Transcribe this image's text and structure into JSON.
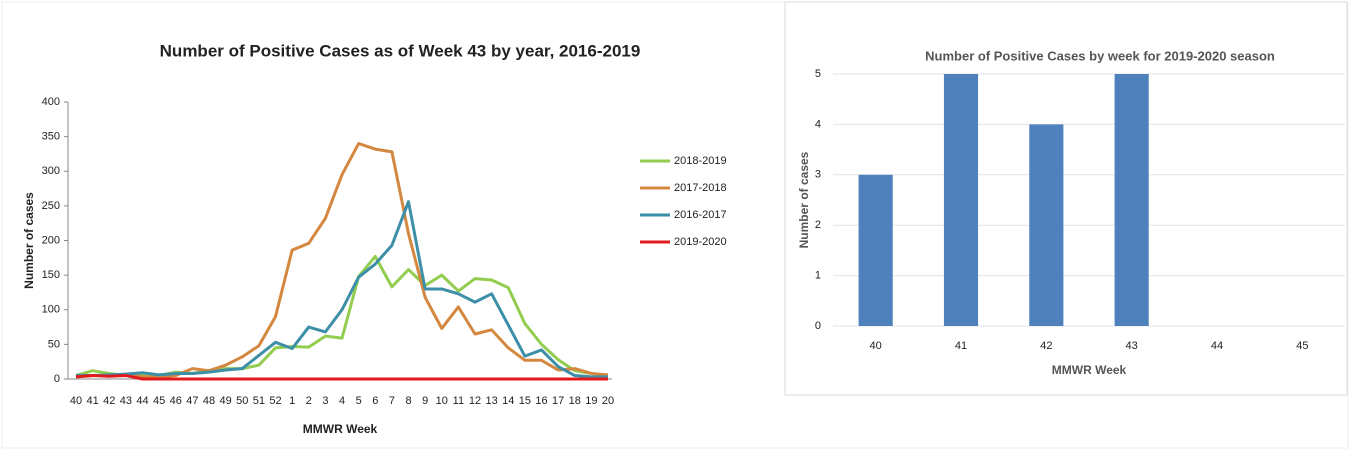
{
  "chart_data": [
    {
      "type": "line",
      "title": "Number of Positive Cases as of Week 43 by year, 2016-2019",
      "x_label": "MMWR Week",
      "y_label": "Number of cases",
      "categories": [
        "40",
        "41",
        "42",
        "43",
        "44",
        "45",
        "46",
        "47",
        "48",
        "49",
        "50",
        "51",
        "52",
        "1",
        "2",
        "3",
        "4",
        "5",
        "6",
        "7",
        "8",
        "9",
        "10",
        "11",
        "12",
        "13",
        "14",
        "15",
        "16",
        "17",
        "18",
        "19",
        "20"
      ],
      "ylim": [
        0,
        400
      ],
      "yticks": [
        0,
        50,
        100,
        150,
        200,
        250,
        300,
        350,
        400
      ],
      "grid": false,
      "legend": "right",
      "series": [
        {
          "name": "2018-2019",
          "color": "#92cd4f",
          "values": [
            5,
            12,
            8,
            5,
            5,
            5,
            10,
            8,
            12,
            15,
            15,
            20,
            45,
            47,
            46,
            62,
            59,
            148,
            177,
            133,
            158,
            135,
            150,
            127,
            145,
            143,
            132,
            80,
            50,
            28,
            12,
            8,
            5
          ]
        },
        {
          "name": "2017-2018",
          "color": "#d4873f",
          "values": [
            3,
            5,
            5,
            7,
            3,
            3,
            5,
            15,
            12,
            20,
            32,
            48,
            90,
            186,
            196,
            232,
            295,
            340,
            332,
            328,
            210,
            118,
            73,
            104,
            65,
            71,
            45,
            27,
            27,
            13,
            15,
            8,
            6
          ]
        },
        {
          "name": "2016-2017",
          "color": "#3d8fa8",
          "values": [
            5,
            5,
            6,
            7,
            9,
            6,
            8,
            8,
            10,
            13,
            15,
            34,
            53,
            44,
            75,
            68,
            100,
            147,
            166,
            193,
            256,
            130,
            130,
            123,
            111,
            123,
            78,
            33,
            42,
            18,
            5,
            3,
            3
          ]
        },
        {
          "name": "2019-2020",
          "color": "#e31a1c",
          "values": [
            3,
            5,
            4,
            5,
            0,
            0,
            0,
            0,
            0,
            0,
            0,
            0,
            0,
            0,
            0,
            0,
            0,
            0,
            0,
            0,
            0,
            0,
            0,
            0,
            0,
            0,
            0,
            0,
            0,
            0,
            0,
            0,
            0
          ]
        }
      ]
    },
    {
      "type": "bar",
      "title": "Number of Positive Cases by week for 2019-2020 season",
      "x_label": "MMWR Week",
      "y_label": "Number of cases",
      "categories": [
        "40",
        "41",
        "42",
        "43",
        "44",
        "45"
      ],
      "values": [
        3,
        5,
        4,
        5,
        0,
        0
      ],
      "color": "#4f81bd",
      "ylim": [
        0,
        5
      ],
      "yticks": [
        0,
        1,
        2,
        3,
        4,
        5
      ],
      "grid": true
    }
  ]
}
